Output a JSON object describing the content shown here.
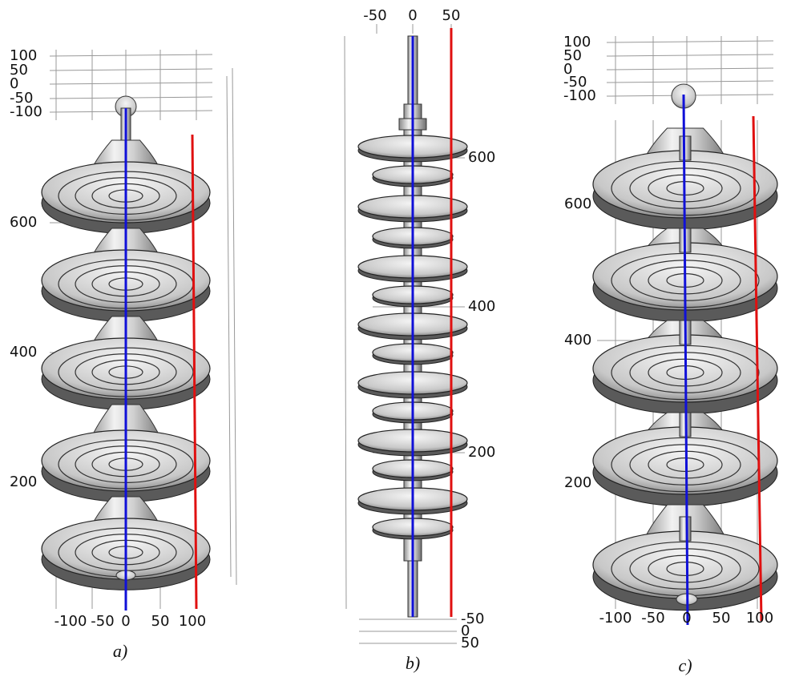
{
  "panels": [
    {
      "top_labels": [
        "100",
        "50",
        "0",
        "-50",
        "-100"
      ],
      "side_labels": [
        "600",
        "400",
        "200"
      ],
      "bottom_labels": [
        "-100",
        "-50",
        "0",
        "50",
        "100"
      ],
      "caption": "a)"
    },
    {
      "top_labels": [
        "-50",
        "0",
        "50"
      ],
      "side_labels": [
        "600",
        "400",
        "200"
      ],
      "bottom_labels": [
        "-50",
        "0",
        "50"
      ],
      "caption": "b)"
    },
    {
      "top_labels": [
        "100",
        "50",
        "0",
        "-50",
        "-100"
      ],
      "side_labels": [
        "600",
        "400",
        "200"
      ],
      "bottom_labels": [
        "-100",
        "-50",
        "0",
        "50",
        "100"
      ],
      "caption": "c)"
    }
  ]
}
